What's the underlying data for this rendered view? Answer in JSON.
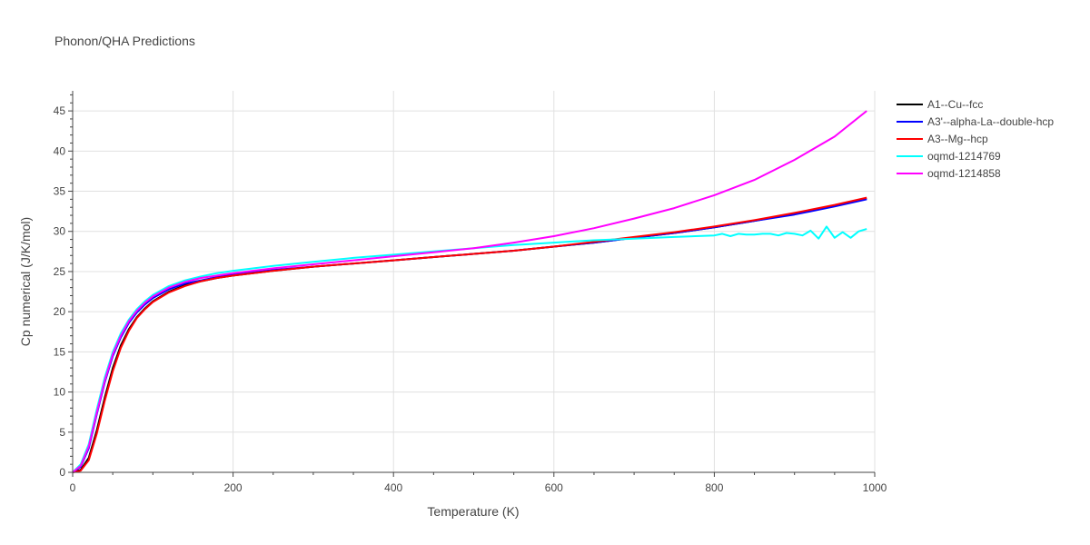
{
  "chart_data": {
    "type": "line",
    "title": "Phonon/QHA Predictions",
    "xlabel": "Temperature (K)",
    "ylabel": "Cp numerical (J/K/mol)",
    "xlim": [
      0,
      1000
    ],
    "ylim": [
      0,
      47.5
    ],
    "xticks": [
      0,
      200,
      400,
      600,
      800,
      1000
    ],
    "yticks": [
      0,
      5,
      10,
      15,
      20,
      25,
      30,
      35,
      40,
      45
    ],
    "grid": true,
    "legend_position": "top-right",
    "series": [
      {
        "name": "A1--Cu--fcc",
        "color": "#000000",
        "x": [
          0,
          10,
          20,
          30,
          40,
          50,
          60,
          70,
          80,
          90,
          100,
          120,
          140,
          160,
          180,
          200,
          250,
          300,
          350,
          400,
          450,
          500,
          550,
          600,
          650,
          700,
          750,
          800,
          850,
          900,
          950,
          990
        ],
        "y": [
          0,
          0.3,
          1.8,
          5.2,
          9.3,
          13.0,
          15.8,
          17.8,
          19.3,
          20.4,
          21.3,
          22.5,
          23.3,
          23.8,
          24.2,
          24.5,
          25.1,
          25.6,
          26.0,
          26.4,
          26.8,
          27.2,
          27.6,
          28.1,
          28.6,
          29.2,
          29.8,
          30.5,
          31.3,
          32.2,
          33.2,
          34.1
        ]
      },
      {
        "name": "A3'--alpha-La--double-hcp",
        "color": "#0000ff",
        "x": [
          0,
          10,
          20,
          30,
          40,
          50,
          60,
          70,
          80,
          90,
          100,
          120,
          140,
          160,
          180,
          200,
          250,
          300,
          350,
          400,
          450,
          500,
          550,
          600,
          650,
          700,
          750,
          800,
          850,
          900,
          950,
          990
        ],
        "y": [
          0,
          0.7,
          3.0,
          7.2,
          11.2,
          14.5,
          16.8,
          18.6,
          19.9,
          20.9,
          21.7,
          22.8,
          23.5,
          23.9,
          24.3,
          24.6,
          25.2,
          25.6,
          26.0,
          26.4,
          26.8,
          27.2,
          27.6,
          28.1,
          28.6,
          29.2,
          29.8,
          30.5,
          31.3,
          32.1,
          33.1,
          34.0
        ]
      },
      {
        "name": "A3--Mg--hcp",
        "color": "#ff0000",
        "x": [
          0,
          10,
          20,
          30,
          40,
          50,
          60,
          70,
          80,
          90,
          100,
          120,
          140,
          160,
          180,
          200,
          250,
          300,
          350,
          400,
          450,
          500,
          550,
          600,
          650,
          700,
          750,
          800,
          850,
          900,
          950,
          990
        ],
        "y": [
          0,
          0.2,
          1.5,
          4.8,
          8.9,
          12.6,
          15.5,
          17.6,
          19.2,
          20.3,
          21.2,
          22.4,
          23.2,
          23.8,
          24.2,
          24.5,
          25.1,
          25.6,
          26.0,
          26.4,
          26.8,
          27.2,
          27.6,
          28.1,
          28.7,
          29.3,
          29.9,
          30.6,
          31.4,
          32.3,
          33.3,
          34.2
        ]
      },
      {
        "name": "oqmd-1214769",
        "color": "#00ffff",
        "x": [
          0,
          10,
          20,
          30,
          40,
          50,
          60,
          70,
          80,
          90,
          100,
          120,
          140,
          160,
          180,
          200,
          250,
          300,
          350,
          400,
          450,
          500,
          550,
          600,
          650,
          700,
          750,
          800,
          810,
          820,
          830,
          840,
          850,
          860,
          870,
          880,
          890,
          900,
          910,
          920,
          930,
          940,
          950,
          960,
          970,
          980,
          990
        ],
        "y": [
          0,
          1.0,
          3.5,
          7.8,
          11.8,
          15.0,
          17.3,
          19.0,
          20.3,
          21.3,
          22.1,
          23.2,
          23.9,
          24.4,
          24.8,
          25.1,
          25.7,
          26.2,
          26.7,
          27.1,
          27.5,
          27.9,
          28.3,
          28.6,
          28.9,
          29.1,
          29.3,
          29.5,
          29.7,
          29.4,
          29.7,
          29.6,
          29.6,
          29.7,
          29.7,
          29.5,
          29.8,
          29.7,
          29.5,
          30.1,
          29.1,
          30.6,
          29.2,
          29.9,
          29.2,
          30.0,
          30.3
        ]
      },
      {
        "name": "oqmd-1214858",
        "color": "#ff00ff",
        "x": [
          0,
          10,
          20,
          30,
          40,
          50,
          60,
          70,
          80,
          90,
          100,
          120,
          140,
          160,
          180,
          200,
          250,
          300,
          350,
          400,
          450,
          500,
          550,
          600,
          650,
          700,
          750,
          800,
          850,
          900,
          950,
          990
        ],
        "y": [
          0,
          0.8,
          3.2,
          7.4,
          11.4,
          14.7,
          17.0,
          18.8,
          20.1,
          21.1,
          21.9,
          23.0,
          23.7,
          24.2,
          24.5,
          24.8,
          25.4,
          25.9,
          26.4,
          26.9,
          27.4,
          27.9,
          28.6,
          29.4,
          30.4,
          31.6,
          32.9,
          34.5,
          36.4,
          38.9,
          41.8,
          45.0
        ]
      }
    ]
  }
}
